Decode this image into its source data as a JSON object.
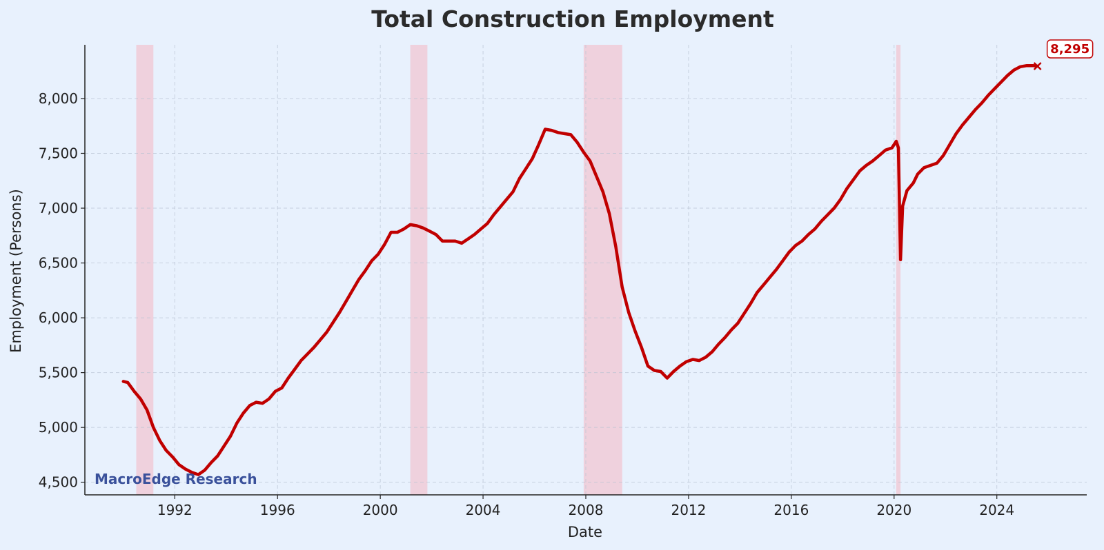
{
  "chart_data": {
    "type": "line",
    "title": "Total Construction Employment",
    "xlabel": "Date",
    "ylabel": "Employment (Persons)",
    "xlim": [
      "1988-07",
      "2027-07"
    ],
    "ylim": [
      4385,
      8490
    ],
    "x_ticks": [
      "1992",
      "1996",
      "2000",
      "2004",
      "2008",
      "2012",
      "2016",
      "2020",
      "2024"
    ],
    "y_ticks": [
      4500,
      5000,
      5500,
      6000,
      6500,
      7000,
      7500,
      8000
    ],
    "y_tick_labels": [
      "4,500",
      "5,000",
      "5,500",
      "6,000",
      "6,500",
      "7,000",
      "7,500",
      "8,000"
    ],
    "grid": true,
    "line_color": "#c00000",
    "recession_color": "#f4b6c2",
    "recessions": [
      {
        "start": "1990-07",
        "end": "1991-03"
      },
      {
        "start": "2001-03",
        "end": "2001-11"
      },
      {
        "start": "2007-12",
        "end": "2009-06"
      },
      {
        "start": "2020-02",
        "end": "2020-04"
      }
    ],
    "series": [
      {
        "points": [
          [
            "1990-01",
            5420
          ],
          [
            "1990-03",
            5410
          ],
          [
            "1990-06",
            5330
          ],
          [
            "1990-09",
            5260
          ],
          [
            "1990-12",
            5160
          ],
          [
            "1991-03",
            5000
          ],
          [
            "1991-06",
            4880
          ],
          [
            "1991-09",
            4790
          ],
          [
            "1991-12",
            4730
          ],
          [
            "1992-03",
            4660
          ],
          [
            "1992-06",
            4620
          ],
          [
            "1992-09",
            4590
          ],
          [
            "1992-12",
            4570
          ],
          [
            "1993-03",
            4610
          ],
          [
            "1993-06",
            4680
          ],
          [
            "1993-09",
            4740
          ],
          [
            "1993-12",
            4830
          ],
          [
            "1994-03",
            4920
          ],
          [
            "1994-06",
            5040
          ],
          [
            "1994-09",
            5130
          ],
          [
            "1994-12",
            5200
          ],
          [
            "1995-03",
            5230
          ],
          [
            "1995-06",
            5220
          ],
          [
            "1995-09",
            5260
          ],
          [
            "1995-12",
            5330
          ],
          [
            "1996-03",
            5360
          ],
          [
            "1996-06",
            5450
          ],
          [
            "1996-09",
            5530
          ],
          [
            "1996-12",
            5610
          ],
          [
            "1997-03",
            5670
          ],
          [
            "1997-06",
            5730
          ],
          [
            "1997-09",
            5800
          ],
          [
            "1997-12",
            5870
          ],
          [
            "1998-03",
            5960
          ],
          [
            "1998-06",
            6050
          ],
          [
            "1998-09",
            6150
          ],
          [
            "1998-12",
            6250
          ],
          [
            "1999-03",
            6350
          ],
          [
            "1999-06",
            6430
          ],
          [
            "1999-09",
            6520
          ],
          [
            "1999-12",
            6580
          ],
          [
            "2000-03",
            6670
          ],
          [
            "2000-06",
            6780
          ],
          [
            "2000-09",
            6780
          ],
          [
            "2000-12",
            6810
          ],
          [
            "2001-03",
            6850
          ],
          [
            "2001-06",
            6840
          ],
          [
            "2001-09",
            6820
          ],
          [
            "2001-12",
            6790
          ],
          [
            "2002-03",
            6760
          ],
          [
            "2002-06",
            6700
          ],
          [
            "2002-09",
            6700
          ],
          [
            "2002-12",
            6700
          ],
          [
            "2003-03",
            6680
          ],
          [
            "2003-06",
            6720
          ],
          [
            "2003-09",
            6760
          ],
          [
            "2003-12",
            6810
          ],
          [
            "2004-03",
            6860
          ],
          [
            "2004-06",
            6940
          ],
          [
            "2004-09",
            7010
          ],
          [
            "2004-12",
            7080
          ],
          [
            "2005-03",
            7150
          ],
          [
            "2005-06",
            7270
          ],
          [
            "2005-09",
            7360
          ],
          [
            "2005-12",
            7450
          ],
          [
            "2006-03",
            7580
          ],
          [
            "2006-06",
            7720
          ],
          [
            "2006-09",
            7710
          ],
          [
            "2006-12",
            7690
          ],
          [
            "2007-03",
            7680
          ],
          [
            "2007-06",
            7670
          ],
          [
            "2007-09",
            7600
          ],
          [
            "2007-12",
            7510
          ],
          [
            "2008-03",
            7430
          ],
          [
            "2008-06",
            7290
          ],
          [
            "2008-09",
            7150
          ],
          [
            "2008-12",
            6950
          ],
          [
            "2009-03",
            6650
          ],
          [
            "2009-06",
            6280
          ],
          [
            "2009-09",
            6050
          ],
          [
            "2009-12",
            5880
          ],
          [
            "2010-03",
            5730
          ],
          [
            "2010-06",
            5560
          ],
          [
            "2010-09",
            5520
          ],
          [
            "2010-12",
            5510
          ],
          [
            "2011-03",
            5450
          ],
          [
            "2011-06",
            5510
          ],
          [
            "2011-09",
            5560
          ],
          [
            "2011-12",
            5600
          ],
          [
            "2012-03",
            5620
          ],
          [
            "2012-06",
            5610
          ],
          [
            "2012-09",
            5640
          ],
          [
            "2012-12",
            5690
          ],
          [
            "2013-03",
            5760
          ],
          [
            "2013-06",
            5820
          ],
          [
            "2013-09",
            5890
          ],
          [
            "2013-12",
            5950
          ],
          [
            "2014-03",
            6040
          ],
          [
            "2014-06",
            6130
          ],
          [
            "2014-09",
            6230
          ],
          [
            "2014-12",
            6300
          ],
          [
            "2015-03",
            6370
          ],
          [
            "2015-06",
            6440
          ],
          [
            "2015-09",
            6520
          ],
          [
            "2015-12",
            6600
          ],
          [
            "2016-03",
            6660
          ],
          [
            "2016-06",
            6700
          ],
          [
            "2016-09",
            6760
          ],
          [
            "2016-12",
            6810
          ],
          [
            "2017-03",
            6880
          ],
          [
            "2017-06",
            6940
          ],
          [
            "2017-09",
            7000
          ],
          [
            "2017-12",
            7080
          ],
          [
            "2018-03",
            7180
          ],
          [
            "2018-06",
            7260
          ],
          [
            "2018-09",
            7340
          ],
          [
            "2018-12",
            7390
          ],
          [
            "2019-03",
            7430
          ],
          [
            "2019-06",
            7480
          ],
          [
            "2019-09",
            7530
          ],
          [
            "2019-12",
            7550
          ],
          [
            "2020-02",
            7610
          ],
          [
            "2020-03",
            7550
          ],
          [
            "2020-04",
            6530
          ],
          [
            "2020-05",
            7020
          ],
          [
            "2020-07",
            7160
          ],
          [
            "2020-10",
            7230
          ],
          [
            "2020-12",
            7310
          ],
          [
            "2021-03",
            7370
          ],
          [
            "2021-06",
            7390
          ],
          [
            "2021-09",
            7410
          ],
          [
            "2021-12",
            7480
          ],
          [
            "2022-03",
            7580
          ],
          [
            "2022-06",
            7680
          ],
          [
            "2022-09",
            7760
          ],
          [
            "2022-12",
            7830
          ],
          [
            "2023-03",
            7900
          ],
          [
            "2023-06",
            7960
          ],
          [
            "2023-09",
            8030
          ],
          [
            "2023-12",
            8090
          ],
          [
            "2024-03",
            8150
          ],
          [
            "2024-06",
            8210
          ],
          [
            "2024-09",
            8260
          ],
          [
            "2024-12",
            8290
          ],
          [
            "2025-03",
            8300
          ],
          [
            "2025-06",
            8300
          ],
          [
            "2025-08",
            8295
          ]
        ]
      }
    ],
    "last_value": {
      "date": "2025-08",
      "value": 8295,
      "label": "8,295"
    },
    "watermark": {
      "text": "MacroEdge Research",
      "color": "#3a519b"
    }
  }
}
